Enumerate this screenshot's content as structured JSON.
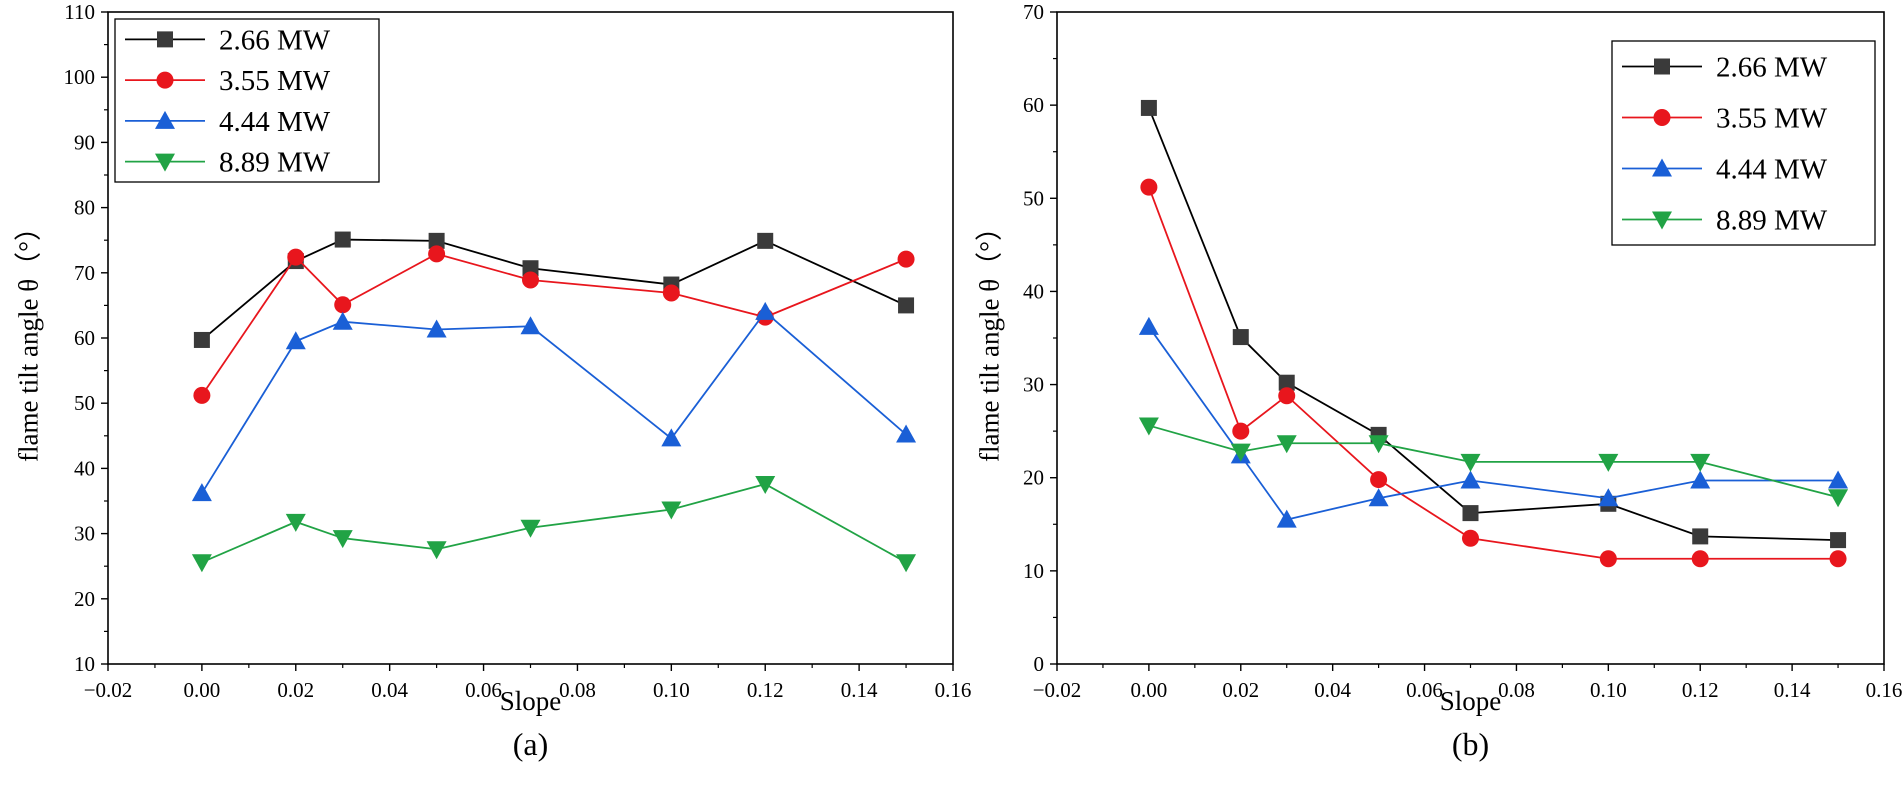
{
  "chart_data": [
    {
      "type": "line",
      "caption": "(a)",
      "xlabel": "Slope",
      "ylabel": "flame tilt angle θ（°）",
      "xlim": [
        -0.02,
        0.16
      ],
      "ylim": [
        10,
        110
      ],
      "xticks": [
        -0.02,
        0.0,
        0.02,
        0.04,
        0.06,
        0.08,
        0.1,
        0.12,
        0.14,
        0.16
      ],
      "xtick_labels": [
        "−0.02",
        "0.00",
        "0.02",
        "0.04",
        "0.06",
        "0.08",
        "0.10",
        "0.12",
        "0.14",
        "0.16"
      ],
      "yticks": [
        10,
        20,
        30,
        40,
        50,
        60,
        70,
        80,
        90,
        100,
        110
      ],
      "ytick_labels": [
        "10",
        "20",
        "30",
        "40",
        "50",
        "60",
        "70",
        "80",
        "90",
        "100",
        "110"
      ],
      "legend_position": "top-left",
      "x": [
        0.0,
        0.02,
        0.03,
        0.05,
        0.07,
        0.1,
        0.12,
        0.15
      ],
      "series": [
        {
          "name": "2.66 MW",
          "color": "#000000",
          "marker": "square",
          "values": [
            59.7,
            71.8,
            75.1,
            74.9,
            70.7,
            68.2,
            74.9,
            65.0
          ]
        },
        {
          "name": "3.55 MW",
          "color": "#e8161d",
          "marker": "circle",
          "values": [
            51.2,
            72.4,
            65.1,
            72.9,
            68.9,
            66.9,
            63.2,
            72.1
          ]
        },
        {
          "name": "4.44 MW",
          "color": "#1a5fd6",
          "marker": "triangle-up",
          "values": [
            36.2,
            59.5,
            62.5,
            61.3,
            61.8,
            44.6,
            64.0,
            45.2
          ]
        },
        {
          "name": "8.89 MW",
          "color": "#21a345",
          "marker": "triangle-down",
          "values": [
            25.6,
            31.8,
            29.3,
            27.6,
            30.9,
            33.7,
            37.6,
            25.6
          ]
        }
      ]
    },
    {
      "type": "line",
      "caption": "(b)",
      "xlabel": "Slope",
      "ylabel": "flame tilt angle θ（°）",
      "xlim": [
        -0.02,
        0.16
      ],
      "ylim": [
        0,
        70
      ],
      "xticks": [
        -0.02,
        0.0,
        0.02,
        0.04,
        0.06,
        0.08,
        0.1,
        0.12,
        0.14,
        0.16
      ],
      "xtick_labels": [
        "−0.02",
        "0.00",
        "0.02",
        "0.04",
        "0.06",
        "0.08",
        "0.10",
        "0.12",
        "0.14",
        "0.16"
      ],
      "yticks": [
        0,
        10,
        20,
        30,
        40,
        50,
        60,
        70
      ],
      "ytick_labels": [
        "0",
        "10",
        "20",
        "30",
        "40",
        "50",
        "60",
        "70"
      ],
      "legend_position": "top-right",
      "x": [
        0.0,
        0.02,
        0.03,
        0.05,
        0.07,
        0.1,
        0.12,
        0.15
      ],
      "series": [
        {
          "name": "2.66 MW",
          "color": "#000000",
          "marker": "square",
          "values": [
            59.7,
            35.1,
            30.2,
            24.6,
            16.2,
            17.2,
            13.7,
            13.3
          ]
        },
        {
          "name": "3.55 MW",
          "color": "#e8161d",
          "marker": "circle",
          "values": [
            51.2,
            25.0,
            28.8,
            19.8,
            13.5,
            11.3,
            11.3,
            11.3
          ]
        },
        {
          "name": "4.44 MW",
          "color": "#1a5fd6",
          "marker": "triangle-up",
          "values": [
            36.2,
            22.4,
            15.5,
            17.8,
            19.7,
            17.8,
            19.7,
            19.7
          ]
        },
        {
          "name": "8.89 MW",
          "color": "#21a345",
          "marker": "triangle-down",
          "values": [
            25.6,
            22.8,
            23.7,
            23.7,
            21.7,
            21.7,
            21.7,
            17.9
          ]
        }
      ]
    }
  ]
}
